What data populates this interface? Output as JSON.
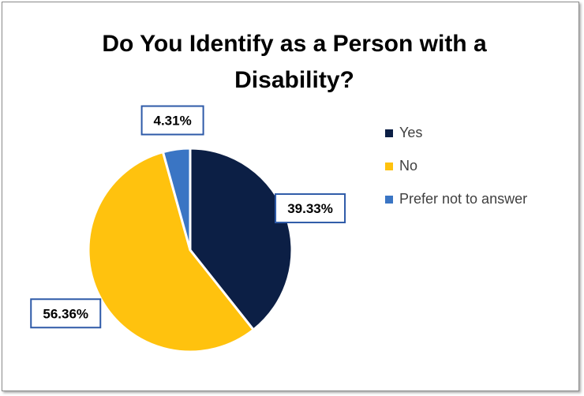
{
  "chart_data": {
    "type": "pie",
    "title": "Do You Identify as a Person with a Disability?",
    "categories": [
      "Yes",
      "No",
      "Prefer not to answer"
    ],
    "values": [
      39.33,
      56.36,
      4.31
    ],
    "data_labels": [
      "39.33%",
      "56.36%",
      "4.31%"
    ],
    "colors": [
      "#0c1f45",
      "#ffc20e",
      "#3a75c4"
    ],
    "legend_position": "right"
  }
}
